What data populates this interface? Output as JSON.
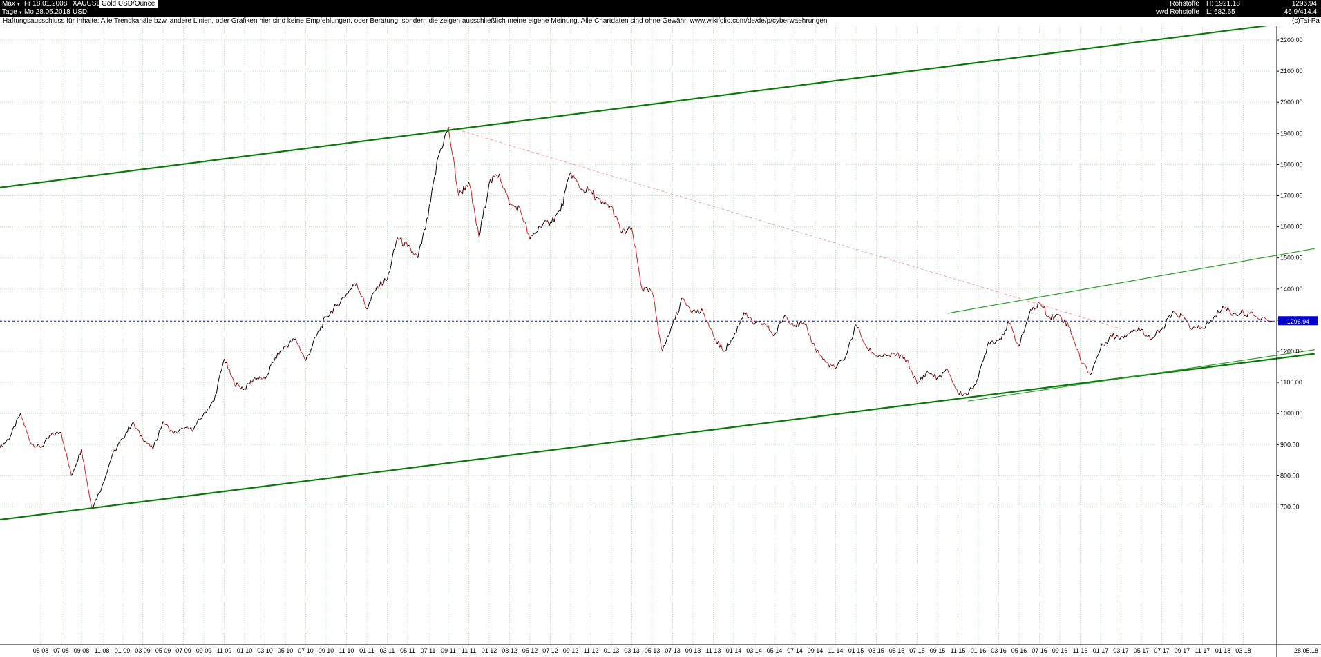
{
  "window": {
    "toolbar": {
      "range_label": "Max",
      "range_date": "Fr 18.01.2008",
      "symbol": "XAUUSD",
      "instrument": "Gold USD/Ounce",
      "period_label": "Tage",
      "period_date": "Mo 28.05.2018",
      "currency": "USD",
      "feed_line1": "Rohstoffe",
      "feed_line2": "vwd Rohstoffe",
      "high_label": "H: 1921.18",
      "low_label": "L: 682.65",
      "last_price": "1296.94",
      "change": "46.9/414.4",
      "copyright": "(c)Tai-Pa"
    },
    "disclaimer": "Haftungsausschluss für Inhalte: Alle Trendkanäle bzw. andere Linien, oder Grafiken hier sind keine Empfehlungen, oder Beratung, sondern die zeigen ausschließlich meine eigene Meinung. Alle Chartdaten sind ohne Gewähr.  www.wikifolio.com/de/de/p/cyberwaehrungen"
  },
  "chart_data": {
    "type": "line",
    "instrument": "Gold USD/Ounce (XAUUSD)",
    "high": 1921.18,
    "low": 682.65,
    "last_price": 1296.94,
    "last_price_label": "1296.94",
    "last_date_label": "28.05.18",
    "ylim": [
      250,
      2250
    ],
    "grid": true,
    "y_ticks": [
      2200,
      2100,
      2000,
      1900,
      1800,
      1700,
      1600,
      1500,
      1400,
      1300,
      1200,
      1100,
      1000,
      900,
      800,
      700
    ],
    "x_tick_labels": [
      "05 08",
      "07 08",
      "09 08",
      "11 08",
      "01 09",
      "03 09",
      "05 09",
      "07 09",
      "09 09",
      "11 09",
      "01 10",
      "03 10",
      "05 10",
      "07 10",
      "09 10",
      "11 10",
      "01 11",
      "03 11",
      "05 11",
      "07 11",
      "09 11",
      "11 11",
      "01 12",
      "03 12",
      "05 12",
      "07 12",
      "09 12",
      "11 12",
      "01 13",
      "03 13",
      "05 13",
      "07 13",
      "09 13",
      "11 13",
      "01 14",
      "03 14",
      "05 14",
      "07 14",
      "09 14",
      "11 14",
      "01 15",
      "03 15",
      "05 15",
      "07 15",
      "09 15",
      "11 15",
      "01 16",
      "03 16",
      "05 16",
      "07 16",
      "09 16",
      "11 16",
      "01 17",
      "03 17",
      "05 17",
      "07 17",
      "09 17",
      "11 17",
      "01 18",
      "03 18"
    ],
    "x": [
      "2008-01",
      "2008-02",
      "2008-03",
      "2008-04",
      "2008-05",
      "2008-06",
      "2008-07",
      "2008-08",
      "2008-09",
      "2008-10",
      "2008-11",
      "2008-12",
      "2009-01",
      "2009-02",
      "2009-03",
      "2009-04",
      "2009-05",
      "2009-06",
      "2009-07",
      "2009-08",
      "2009-09",
      "2009-10",
      "2009-11",
      "2009-12",
      "2010-01",
      "2010-02",
      "2010-03",
      "2010-04",
      "2010-05",
      "2010-06",
      "2010-07",
      "2010-08",
      "2010-09",
      "2010-10",
      "2010-11",
      "2010-12",
      "2011-01",
      "2011-02",
      "2011-03",
      "2011-04",
      "2011-05",
      "2011-06",
      "2011-07",
      "2011-08",
      "2011-09",
      "2011-10",
      "2011-11",
      "2011-12",
      "2012-01",
      "2012-02",
      "2012-03",
      "2012-04",
      "2012-05",
      "2012-06",
      "2012-07",
      "2012-08",
      "2012-09",
      "2012-10",
      "2012-11",
      "2012-12",
      "2013-01",
      "2013-02",
      "2013-03",
      "2013-04",
      "2013-05",
      "2013-06",
      "2013-07",
      "2013-08",
      "2013-09",
      "2013-10",
      "2013-11",
      "2013-12",
      "2014-01",
      "2014-02",
      "2014-03",
      "2014-04",
      "2014-05",
      "2014-06",
      "2014-07",
      "2014-08",
      "2014-09",
      "2014-10",
      "2014-11",
      "2014-12",
      "2015-01",
      "2015-02",
      "2015-03",
      "2015-04",
      "2015-05",
      "2015-06",
      "2015-07",
      "2015-08",
      "2015-09",
      "2015-10",
      "2015-11",
      "2015-12",
      "2016-01",
      "2016-02",
      "2016-03",
      "2016-04",
      "2016-05",
      "2016-06",
      "2016-07",
      "2016-08",
      "2016-09",
      "2016-10",
      "2016-11",
      "2016-12",
      "2017-01",
      "2017-02",
      "2017-03",
      "2017-04",
      "2017-05",
      "2017-06",
      "2017-07",
      "2017-08",
      "2017-09",
      "2017-10",
      "2017-11",
      "2017-12",
      "2018-01",
      "2018-02",
      "2018-03",
      "2018-04",
      "2018-05-28"
    ],
    "values": [
      890,
      925,
      1000,
      905,
      890,
      930,
      940,
      800,
      885,
      695,
      765,
      865,
      920,
      970,
      920,
      885,
      975,
      935,
      950,
      950,
      1000,
      1040,
      1175,
      1095,
      1080,
      1115,
      1110,
      1180,
      1215,
      1240,
      1170,
      1245,
      1310,
      1345,
      1385,
      1420,
      1335,
      1410,
      1430,
      1565,
      1535,
      1500,
      1630,
      1825,
      1920,
      1700,
      1745,
      1565,
      1740,
      1770,
      1670,
      1660,
      1560,
      1600,
      1615,
      1650,
      1775,
      1720,
      1715,
      1675,
      1665,
      1580,
      1595,
      1400,
      1390,
      1200,
      1285,
      1370,
      1330,
      1325,
      1250,
      1200,
      1245,
      1325,
      1285,
      1290,
      1250,
      1315,
      1285,
      1285,
      1210,
      1165,
      1145,
      1185,
      1285,
      1215,
      1185,
      1185,
      1190,
      1170,
      1095,
      1135,
      1115,
      1140,
      1065,
      1062,
      1115,
      1230,
      1235,
      1290,
      1215,
      1320,
      1355,
      1310,
      1315,
      1275,
      1175,
      1125,
      1210,
      1250,
      1245,
      1265,
      1270,
      1240,
      1270,
      1320,
      1315,
      1270,
      1275,
      1300,
      1345,
      1320,
      1325,
      1315,
      1296.94
    ],
    "annotations": [
      {
        "name": "trend-channel-upper-line",
        "color": "#0a7a0a",
        "width": 2.2,
        "dash": null,
        "from": {
          "date": "2008-01",
          "price": 1726
        },
        "to": {
          "date": "2018-10",
          "price": 2266
        }
      },
      {
        "name": "trend-channel-lower-line",
        "color": "#0a7a0a",
        "width": 2.2,
        "dash": null,
        "from": {
          "date": "2008-01",
          "price": 659
        },
        "to": {
          "date": "2018-10",
          "price": 1192
        }
      },
      {
        "name": "minor-resistance-line",
        "color": "#2f9e2f",
        "width": 1.2,
        "dash": null,
        "from": {
          "date": "2015-10",
          "price": 1322
        },
        "to": {
          "date": "2018-10",
          "price": 1530
        }
      },
      {
        "name": "minor-support-line",
        "color": "#2f9e2f",
        "width": 1.2,
        "dash": null,
        "from": {
          "date": "2015-12",
          "price": 1040
        },
        "to": {
          "date": "2018-10",
          "price": 1205
        }
      },
      {
        "name": "downtrend-dashed-line",
        "color": "#f2a2a2",
        "width": 1,
        "dash": "4,3",
        "from": {
          "date": "2011-09",
          "price": 1921
        },
        "to": {
          "date": "2017-03",
          "price": 1272
        }
      }
    ],
    "level_line": {
      "price": 1296.94,
      "label": "1296.94",
      "color": "#1414cc",
      "box_color": "#0000cd"
    },
    "style": {
      "grid": "#bfe3bf",
      "up": "#000000",
      "down": "#cc2222",
      "axis": "#000000",
      "background": "#ffffff",
      "noise": 11
    }
  }
}
